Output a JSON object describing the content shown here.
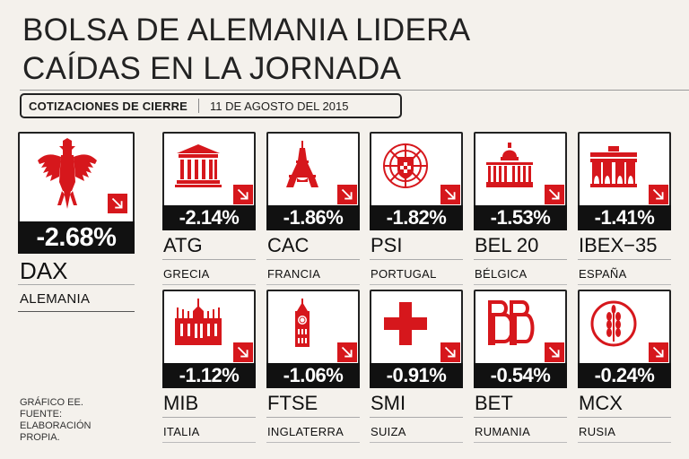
{
  "title_line1": "BOLSA DE ALEMANIA LIDERA",
  "title_line2": "CAÍDAS EN LA JORNADA",
  "sub_label": "COTIZACIONES DE CIERRE",
  "sub_date": "11 DE AGOSTO DEL 2015",
  "accent": "#d6171c",
  "main": {
    "value": "-2.68%",
    "code": "DAX",
    "country": "ALEMANIA",
    "icon": "eagle-icon"
  },
  "grid": [
    {
      "value": "-2.14%",
      "code": "ATG",
      "country": "GRECIA",
      "icon": "temple-icon"
    },
    {
      "value": "-1.86%",
      "code": "CAC",
      "country": "FRANCIA",
      "icon": "eiffel-tower-icon"
    },
    {
      "value": "-1.82%",
      "code": "PSI",
      "country": "PORTUGAL",
      "icon": "portugal-shield-icon"
    },
    {
      "value": "-1.53%",
      "code": "BEL 20",
      "country": "BÉLGICA",
      "icon": "palace-icon"
    },
    {
      "value": "-1.41%",
      "code": "IBEX−35",
      "country": "ESPAÑA",
      "icon": "gate-icon"
    },
    {
      "value": "-1.12%",
      "code": "MIB",
      "country": "ITALIA",
      "icon": "cathedral-icon"
    },
    {
      "value": "-1.06%",
      "code": "FTSE",
      "country": "INGLATERRA",
      "icon": "big-ben-icon"
    },
    {
      "value": "-0.91%",
      "code": "SMI",
      "country": "SUIZA",
      "icon": "swiss-cross-icon"
    },
    {
      "value": "-0.54%",
      "code": "BET",
      "country": "RUMANIA",
      "icon": "bb-logo-icon"
    },
    {
      "value": "-0.24%",
      "code": "MCX",
      "country": "RUSIA",
      "icon": "wheat-emblem-icon"
    }
  ],
  "footer": {
    "line1": "GRÁFICO EE.",
    "line2": "FUENTE:",
    "line3": "ELABORACIÓN",
    "line4": "PROPIA."
  }
}
